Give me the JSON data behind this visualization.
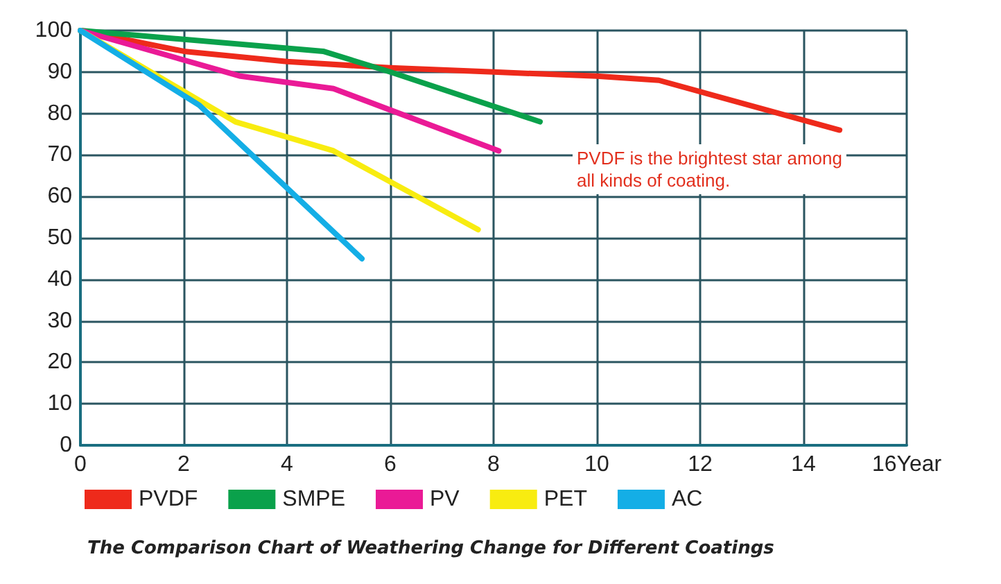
{
  "chart_data": {
    "type": "line",
    "title": "The Comparison Chart of Weathering Change for Different Coatings",
    "annotations": [
      "PVDF is the brightest star among\nall kinds of coating."
    ],
    "xlim": [
      0,
      16
    ],
    "xticks": [
      0,
      2,
      4,
      6,
      8,
      10,
      12,
      14,
      {
        "value": 16,
        "label": "16Year"
      }
    ],
    "ylim": [
      0,
      100
    ],
    "yticks": [
      0,
      10,
      20,
      30,
      40,
      50,
      60,
      70,
      80,
      90,
      100
    ],
    "series": [
      {
        "name": "PVDF",
        "color": "#ee2a1b",
        "x": [
          0,
          2,
          4,
          6,
          8,
          10,
          11.2,
          14.7
        ],
        "values": [
          100,
          95,
          92.5,
          91,
          90,
          89,
          88,
          76
        ]
      },
      {
        "name": "SMPE",
        "color": "#0aa14b",
        "x": [
          0,
          4.7,
          6,
          8.9
        ],
        "values": [
          100,
          95,
          90,
          78
        ]
      },
      {
        "name": "PV",
        "color": "#ea1a96",
        "x": [
          0,
          3.1,
          4.9,
          8.1
        ],
        "values": [
          100,
          89,
          86,
          71
        ]
      },
      {
        "name": "PET",
        "color": "#f8ec10",
        "x": [
          0,
          3,
          4.9,
          7.7
        ],
        "values": [
          100,
          78,
          71,
          52
        ]
      },
      {
        "name": "AC",
        "color": "#14aee6",
        "x": [
          0,
          2.3,
          5.45
        ],
        "values": [
          100,
          82,
          45
        ]
      }
    ],
    "grid": true,
    "legend": "bottom left",
    "marker": "none",
    "line_style": "solid"
  }
}
